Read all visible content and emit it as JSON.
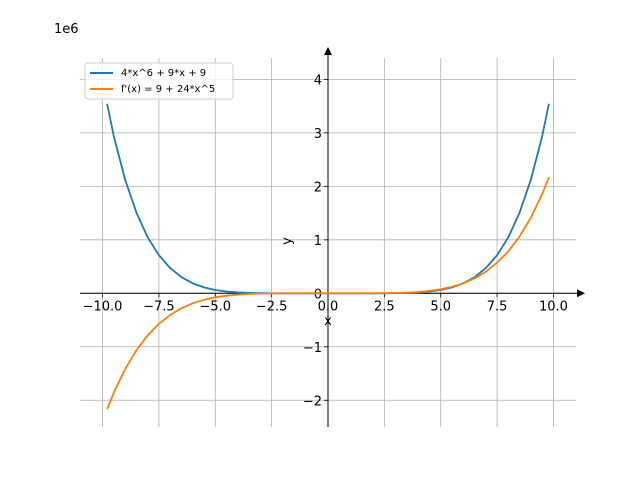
{
  "chart_data": {
    "type": "line",
    "multiplier_label": "1e6",
    "xlabel": "x",
    "ylabel": "y",
    "xlim": [
      -11,
      11
    ],
    "ylim": [
      -2.5,
      4.4
    ],
    "x_ticks": [
      -10.0,
      -7.5,
      -5.0,
      -2.5,
      0.0,
      2.5,
      5.0,
      7.5,
      10.0
    ],
    "x_tick_labels": [
      "−10.0",
      "−7.5",
      "−5.0",
      "−2.5",
      "0.0",
      "2.5",
      "5.0",
      "7.5",
      "10.0"
    ],
    "y_ticks": [
      -2,
      -1,
      0,
      1,
      2,
      3,
      4
    ],
    "y_tick_labels": [
      "−2",
      "−1",
      "0",
      "1",
      "2",
      "3",
      "4"
    ],
    "grid": true,
    "legend_position": "top-left",
    "series": [
      {
        "name": "4*x^6 + 9*x + 9",
        "color": "#1f77b4",
        "x": [
          -9.8,
          -9.5,
          -9.0,
          -8.5,
          -8.0,
          -7.5,
          -7.0,
          -6.5,
          -6.0,
          -5.5,
          -5.0,
          -4.5,
          -4.0,
          -3.5,
          -3.0,
          -2.5,
          -2.0,
          -1.5,
          -1.0,
          -0.5,
          0.0,
          0.5,
          1.0,
          1.5,
          2.0,
          2.5,
          3.0,
          3.5,
          4.0,
          4.5,
          5.0,
          5.5,
          6.0,
          6.5,
          7.0,
          7.5,
          8.0,
          8.5,
          9.0,
          9.5,
          9.8
        ],
        "y": [
          3.5436,
          2.9405,
          2.1258,
          1.5086,
          1.0486,
          0.7119,
          0.4706,
          0.3017,
          0.1866,
          0.1107,
          0.0625,
          0.0332,
          0.0164,
          0.0074,
          0.0029,
          0.001,
          0.0003,
          0.0,
          0.0,
          0.0,
          0.0,
          0.0,
          0.0,
          0.0001,
          0.0003,
          0.001,
          0.0029,
          0.0074,
          0.0164,
          0.0332,
          0.0625,
          0.1107,
          0.1867,
          0.3018,
          0.4706,
          0.712,
          1.0486,
          1.5086,
          2.1258,
          2.9405,
          3.5436
        ]
      },
      {
        "name": "f'(x) = 9 + 24*x^5",
        "color": "#ff7f0e",
        "x": [
          -9.8,
          -9.5,
          -9.0,
          -8.5,
          -8.0,
          -7.5,
          -7.0,
          -6.5,
          -6.0,
          -5.5,
          -5.0,
          -4.5,
          -4.0,
          -3.5,
          -3.0,
          -2.5,
          -2.0,
          -1.5,
          -1.0,
          -0.5,
          0.0,
          0.5,
          1.0,
          1.5,
          2.0,
          2.5,
          3.0,
          3.5,
          4.0,
          4.5,
          5.0,
          5.5,
          6.0,
          6.5,
          7.0,
          7.5,
          8.0,
          8.5,
          9.0,
          9.5,
          9.8
        ],
        "y": [
          -2.1695,
          -1.8571,
          -1.4172,
          -1.0649,
          -0.7864,
          -0.5695,
          -0.4034,
          -0.2785,
          -0.1866,
          -0.1208,
          -0.075,
          -0.0443,
          -0.0246,
          -0.0126,
          -0.0058,
          -0.0023,
          -0.0008,
          -0.0002,
          0.0,
          0.0,
          0.0,
          0.0,
          0.0,
          0.0002,
          0.0008,
          0.0023,
          0.0058,
          0.0126,
          0.0246,
          0.0443,
          0.075,
          0.1208,
          0.1866,
          0.2785,
          0.4034,
          0.5695,
          0.7864,
          1.0649,
          1.4172,
          1.8571,
          2.1695
        ]
      }
    ]
  }
}
